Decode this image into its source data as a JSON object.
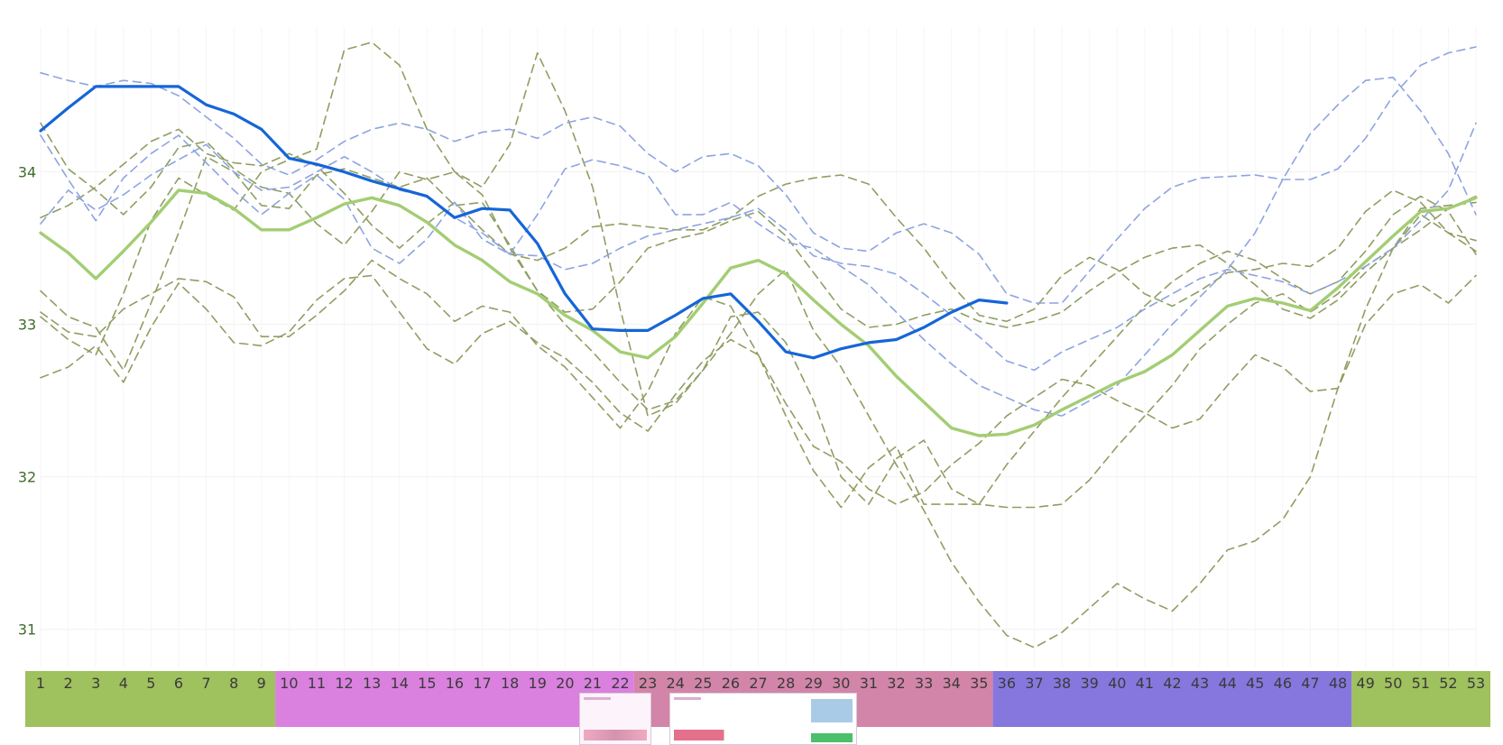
{
  "chart_data": {
    "type": "line",
    "x": [
      1,
      2,
      3,
      4,
      5,
      6,
      7,
      8,
      9,
      10,
      11,
      12,
      13,
      14,
      15,
      16,
      17,
      18,
      19,
      20,
      21,
      22,
      23,
      24,
      25,
      26,
      27,
      28,
      29,
      30,
      31,
      32,
      33,
      34,
      35,
      36,
      37,
      38,
      39,
      40,
      41,
      42,
      43,
      44,
      45,
      46,
      47,
      48,
      49,
      50,
      51,
      52,
      53
    ],
    "ylim": [
      30.75,
      34.95
    ],
    "yticks": [
      "31",
      "32",
      "33",
      "34"
    ],
    "grid": true,
    "legend": "none",
    "series": [
      {
        "role": "current",
        "color": "#1565d8",
        "values": [
          34.27,
          34.42,
          34.56,
          34.56,
          34.56,
          34.56,
          34.44,
          34.38,
          34.28,
          34.09,
          34.05,
          34.0,
          33.94,
          33.89,
          33.84,
          33.7,
          33.76,
          33.75,
          33.53,
          33.2,
          32.97,
          32.96,
          32.96,
          33.06,
          33.17,
          33.2,
          33.02,
          32.82,
          32.78,
          32.84,
          32.88,
          32.9,
          32.98,
          33.08,
          33.16,
          33.14,
          null,
          null,
          null,
          null,
          null,
          null,
          null,
          null,
          null,
          null,
          null,
          null,
          null,
          null,
          null,
          null,
          null
        ]
      },
      {
        "role": "average",
        "color": "#a3cd73",
        "values": [
          33.6,
          33.47,
          33.3,
          33.48,
          33.67,
          33.88,
          33.86,
          33.76,
          33.62,
          33.62,
          33.7,
          33.79,
          33.83,
          33.78,
          33.67,
          33.52,
          33.42,
          33.28,
          33.2,
          33.06,
          32.96,
          32.82,
          32.78,
          32.92,
          33.14,
          33.37,
          33.42,
          33.33,
          33.16,
          33.0,
          32.86,
          32.66,
          32.49,
          32.32,
          32.27,
          32.28,
          32.34,
          32.44,
          32.53,
          32.62,
          32.69,
          32.8,
          32.96,
          33.12,
          33.17,
          33.14,
          33.09,
          33.24,
          33.41,
          33.58,
          33.74,
          33.76,
          33.83
        ]
      },
      {
        "role": "past-blue",
        "color": "#8ea4e0",
        "values": [
          34.65,
          34.6,
          34.56,
          34.6,
          34.58,
          34.5,
          34.36,
          34.22,
          34.05,
          33.98,
          34.08,
          34.2,
          34.28,
          34.32,
          34.28,
          34.2,
          34.26,
          34.28,
          34.22,
          34.32,
          34.36,
          34.3,
          34.12,
          34.0,
          34.1,
          34.12,
          34.04,
          33.85,
          33.6,
          33.5,
          33.48,
          33.6,
          33.66,
          33.6,
          33.46,
          33.2,
          33.14,
          33.14,
          33.35,
          33.56,
          33.76,
          33.9,
          33.96,
          33.97,
          33.98,
          33.95,
          33.95,
          34.02,
          34.22,
          34.5,
          34.7,
          34.78,
          34.82
        ]
      },
      {
        "role": "past-blue",
        "color": "#8ea4e0",
        "values": [
          33.66,
          33.88,
          33.75,
          33.85,
          33.98,
          34.08,
          34.18,
          34.0,
          33.88,
          33.9,
          34.0,
          34.1,
          34.0,
          33.88,
          33.84,
          33.7,
          33.6,
          33.46,
          33.45,
          33.36,
          33.4,
          33.5,
          33.58,
          33.62,
          33.66,
          33.7,
          33.76,
          33.62,
          33.45,
          33.4,
          33.38,
          33.33,
          33.2,
          33.06,
          32.92,
          32.76,
          32.7,
          32.82,
          32.9,
          32.98,
          33.1,
          33.2,
          33.3,
          33.36,
          33.32,
          33.28,
          33.2,
          33.28,
          33.38,
          33.5,
          33.68,
          33.88,
          34.32
        ]
      },
      {
        "role": "past-blue",
        "color": "#8ea4e0",
        "values": [
          34.24,
          33.95,
          33.68,
          33.96,
          34.12,
          34.24,
          34.06,
          33.88,
          33.72,
          33.86,
          33.98,
          33.82,
          33.5,
          33.4,
          33.56,
          33.8,
          33.56,
          33.46,
          33.72,
          34.02,
          34.08,
          34.04,
          33.98,
          33.72,
          33.72,
          33.8,
          33.66,
          33.54,
          33.5,
          33.38,
          33.26,
          33.08,
          32.9,
          32.74,
          32.6,
          32.52,
          32.44,
          32.4,
          32.5,
          32.6,
          32.8,
          33.0,
          33.18,
          33.36,
          33.6,
          33.95,
          34.25,
          34.44,
          34.6,
          34.62,
          34.4,
          34.12,
          33.72
        ]
      },
      {
        "role": "past-green",
        "color": "#8f9e62",
        "values": [
          34.32,
          34.02,
          33.88,
          33.72,
          33.9,
          34.16,
          34.2,
          34.02,
          33.9,
          33.86,
          33.66,
          33.52,
          33.74,
          34.0,
          33.95,
          34.0,
          33.85,
          33.5,
          33.22,
          33.0,
          32.82,
          32.62,
          32.44,
          32.5,
          32.7,
          33.05,
          33.08,
          32.88,
          32.5,
          32.0,
          31.82,
          32.12,
          32.24,
          31.92,
          31.82,
          32.08,
          32.3,
          32.52,
          32.72,
          32.92,
          33.12,
          33.28,
          33.4,
          33.48,
          33.42,
          33.3,
          33.2,
          33.28,
          33.48,
          33.72,
          33.84,
          33.74,
          33.46
        ]
      },
      {
        "role": "past-green",
        "color": "#8f9e62",
        "values": [
          33.05,
          32.9,
          32.8,
          33.2,
          33.68,
          33.96,
          33.85,
          33.75,
          34.0,
          34.08,
          34.15,
          34.8,
          34.85,
          34.7,
          34.28,
          34.0,
          33.9,
          34.18,
          34.78,
          34.4,
          33.9,
          33.1,
          32.4,
          32.48,
          32.7,
          32.94,
          33.2,
          33.36,
          32.96,
          32.72,
          32.4,
          32.08,
          31.78,
          31.44,
          31.18,
          30.96,
          30.88,
          30.98,
          31.14,
          31.3,
          31.2,
          31.12,
          31.3,
          31.52,
          31.58,
          31.72,
          32.0,
          32.58,
          33.0,
          33.2,
          33.26,
          33.14,
          33.32
        ]
      },
      {
        "role": "past-green",
        "color": "#8f9e62",
        "values": [
          32.65,
          32.72,
          32.86,
          32.62,
          32.98,
          33.27,
          33.1,
          32.88,
          32.86,
          32.95,
          33.16,
          33.3,
          33.32,
          33.08,
          32.84,
          32.74,
          32.94,
          33.02,
          32.88,
          32.78,
          32.62,
          32.42,
          32.3,
          32.54,
          32.76,
          32.9,
          32.8,
          32.4,
          32.04,
          31.8,
          32.06,
          32.2,
          31.82,
          31.82,
          31.82,
          31.8,
          31.8,
          31.82,
          31.98,
          32.2,
          32.4,
          32.6,
          32.84,
          33.0,
          33.14,
          33.2,
          33.08,
          33.2,
          33.38,
          33.5,
          33.76,
          33.78,
          33.8
        ]
      },
      {
        "role": "past-green",
        "color": "#8f9e62",
        "values": [
          33.08,
          32.95,
          32.92,
          33.1,
          33.2,
          33.3,
          33.28,
          33.18,
          32.92,
          32.92,
          33.06,
          33.22,
          33.42,
          33.3,
          33.2,
          33.02,
          33.12,
          33.08,
          32.86,
          32.72,
          32.52,
          32.32,
          32.56,
          32.94,
          33.18,
          33.12,
          32.8,
          32.48,
          32.2,
          32.1,
          31.92,
          31.82,
          31.9,
          32.08,
          32.22,
          32.4,
          32.52,
          32.64,
          32.6,
          32.5,
          32.42,
          32.32,
          32.38,
          32.6,
          32.8,
          32.72,
          32.56,
          32.58,
          33.1,
          33.5,
          33.72,
          33.6,
          33.55
        ]
      },
      {
        "role": "past-green",
        "color": "#8f9e62",
        "values": [
          33.7,
          33.78,
          33.9,
          34.05,
          34.2,
          34.28,
          34.12,
          34.06,
          34.04,
          34.12,
          34.04,
          33.86,
          33.65,
          33.5,
          33.66,
          33.8,
          33.62,
          33.46,
          33.42,
          33.5,
          33.64,
          33.66,
          33.64,
          33.62,
          33.62,
          33.7,
          33.84,
          33.92,
          33.96,
          33.98,
          33.92,
          33.7,
          33.5,
          33.26,
          33.06,
          33.02,
          33.1,
          33.32,
          33.44,
          33.36,
          33.2,
          33.12,
          33.22,
          33.34,
          33.36,
          33.4,
          33.38,
          33.5,
          33.74,
          33.88,
          33.8,
          33.6,
          33.48
        ]
      },
      {
        "role": "past-green",
        "color": "#8f9e62",
        "values": [
          33.22,
          33.05,
          32.98,
          32.7,
          33.14,
          33.6,
          34.1,
          34.0,
          33.78,
          33.76,
          33.98,
          34.02,
          33.96,
          33.9,
          33.96,
          33.78,
          33.8,
          33.52,
          33.22,
          33.08,
          33.1,
          33.28,
          33.5,
          33.56,
          33.6,
          33.68,
          33.74,
          33.58,
          33.34,
          33.1,
          32.98,
          33.0,
          33.06,
          33.1,
          33.02,
          32.98,
          33.02,
          33.08,
          33.22,
          33.34,
          33.44,
          33.5,
          33.52,
          33.4,
          33.26,
          33.1,
          33.04,
          33.16,
          33.34,
          33.5,
          33.62,
          33.76,
          33.84
        ]
      }
    ],
    "season_bands": [
      {
        "from": 1,
        "to": 9,
        "color": "#9fc15e"
      },
      {
        "from": 10,
        "to": 22,
        "color": "#da80df"
      },
      {
        "from": 23,
        "to": 35,
        "color": "#d285a8"
      },
      {
        "from": 36,
        "to": 48,
        "color": "#8677df"
      },
      {
        "from": 49,
        "to": 53,
        "color": "#9fc15e"
      }
    ],
    "week_labels": [
      "1",
      "2",
      "3",
      "4",
      "5",
      "6",
      "7",
      "8",
      "9",
      "10",
      "11",
      "12",
      "13",
      "14",
      "15",
      "16",
      "17",
      "18",
      "19",
      "20",
      "21",
      "22",
      "23",
      "24",
      "25",
      "26",
      "27",
      "28",
      "29",
      "30",
      "31",
      "32",
      "33",
      "34",
      "35",
      "36",
      "37",
      "38",
      "39",
      "40",
      "41",
      "42",
      "43",
      "44",
      "45",
      "46",
      "47",
      "48",
      "49",
      "50",
      "51",
      "52",
      "53"
    ]
  }
}
